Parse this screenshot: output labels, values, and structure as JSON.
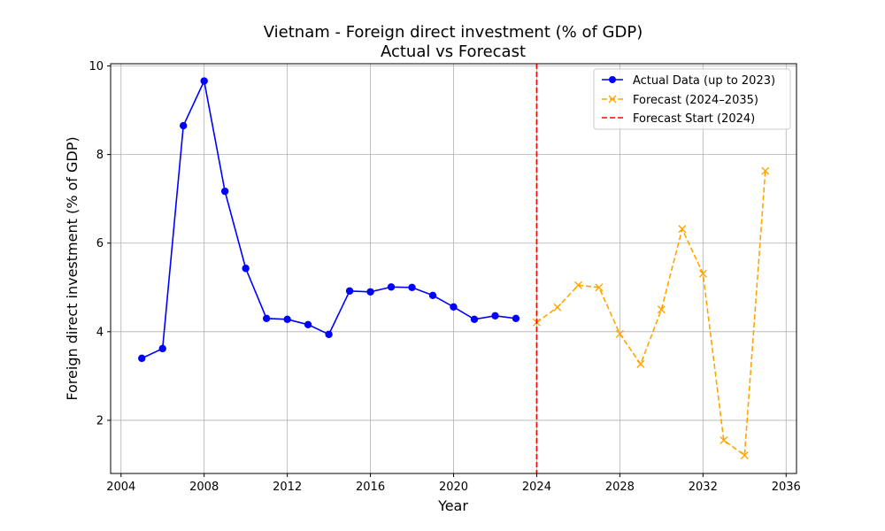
{
  "chart_data": {
    "type": "line",
    "title": "Vietnam - Foreign direct investment (% of GDP)",
    "subtitle": "Actual vs Forecast",
    "xlabel": "Year",
    "ylabel": "Foreign direct investment (% of GDP)",
    "xlim": [
      2003.5,
      2036.5
    ],
    "ylim": [
      0.8,
      10.05
    ],
    "xticks": [
      2004,
      2008,
      2012,
      2016,
      2020,
      2024,
      2028,
      2032,
      2036
    ],
    "yticks": [
      2,
      4,
      6,
      8,
      10
    ],
    "grid": true,
    "legend_position": "top-right",
    "series": [
      {
        "name": "Actual Data (up to 2023)",
        "style": "solid-circle",
        "color": "#0000ff",
        "x": [
          2005,
          2006,
          2007,
          2008,
          2009,
          2010,
          2011,
          2012,
          2013,
          2014,
          2015,
          2016,
          2017,
          2018,
          2019,
          2020,
          2021,
          2022,
          2023
        ],
        "y": [
          3.4,
          3.62,
          8.65,
          9.66,
          7.17,
          5.43,
          4.3,
          4.28,
          4.16,
          3.94,
          4.92,
          4.9,
          5.01,
          5.0,
          4.82,
          4.56,
          4.28,
          4.36,
          4.3
        ]
      },
      {
        "name": "Forecast (2024–2035)",
        "style": "dashed-x",
        "color": "#ffa500",
        "x": [
          2024,
          2025,
          2026,
          2027,
          2028,
          2029,
          2030,
          2031,
          2032,
          2033,
          2034,
          2035
        ],
        "y": [
          4.21,
          4.55,
          5.05,
          5.0,
          3.95,
          3.27,
          4.5,
          6.32,
          5.31,
          1.55,
          1.21,
          7.63
        ]
      }
    ],
    "vertical_lines": [
      {
        "name": "Forecast Start (2024)",
        "x": 2024,
        "color": "#ff0000",
        "style": "dashed"
      }
    ]
  }
}
